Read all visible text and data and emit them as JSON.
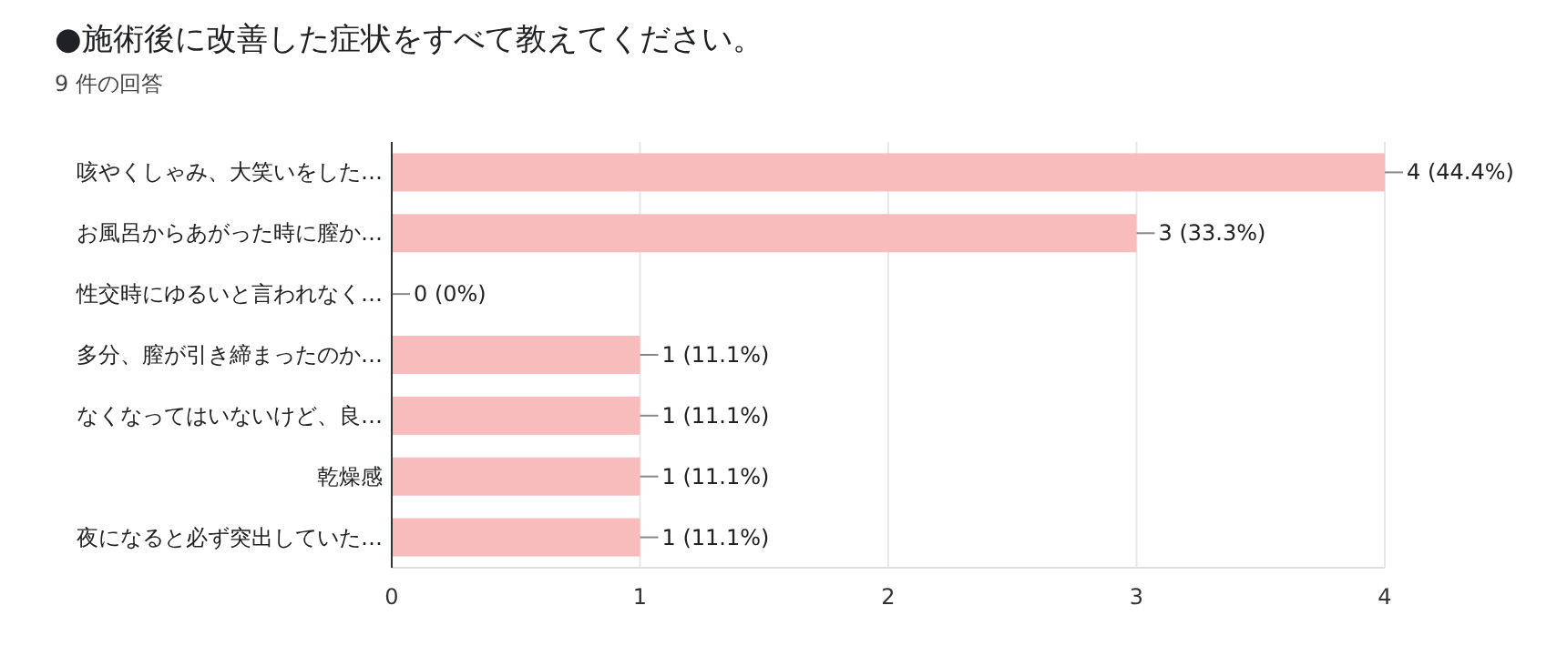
{
  "chart_data": {
    "type": "bar",
    "orientation": "horizontal",
    "title": "●施術後に改善した症状をすべて教えてください。",
    "subtitle": "9 件の回答",
    "categories": [
      "咳やくしゃみ、大笑いをした…",
      "お風呂からあがった時に膣か…",
      "性交時にゆるいと言われなく…",
      "多分、膣が引き締まったのか…",
      "なくなってはいないけど、良…",
      "乾燥感",
      "夜になると必ず突出していた…"
    ],
    "values": [
      4,
      3,
      0,
      1,
      1,
      1,
      1
    ],
    "value_labels": [
      "4 (44.4%)",
      "3 (33.3%)",
      "0 (0%)",
      "1 (11.1%)",
      "1 (11.1%)",
      "1 (11.1%)",
      "1 (11.1%)"
    ],
    "color": "#f9bcbc",
    "xlim": [
      0,
      4
    ],
    "xticks": [
      0,
      1,
      2,
      3,
      4
    ],
    "grid": "x"
  }
}
